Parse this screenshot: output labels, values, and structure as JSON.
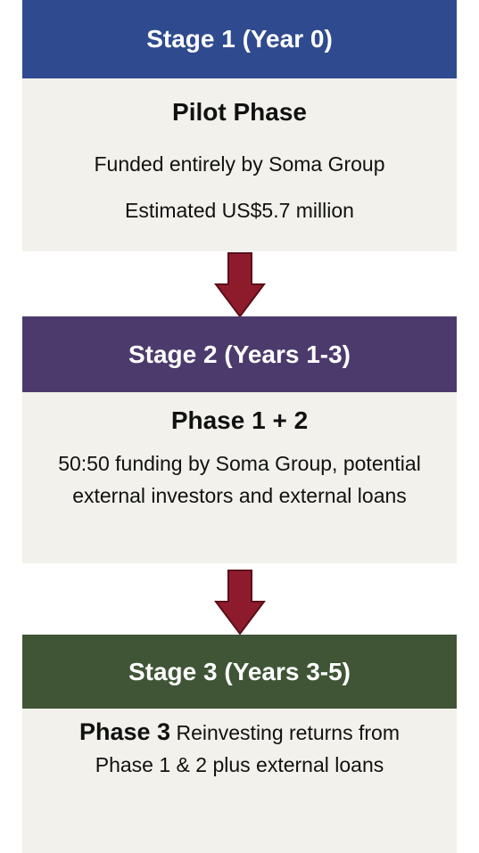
{
  "stages": [
    {
      "title": "Stage 1 (Year 0)",
      "phase": "Pilot Phase",
      "lines": [
        "Funded entirely by Soma Group",
        "Estimated US$5.7 million"
      ]
    },
    {
      "title": "Stage 2 (Years 1-3)",
      "phase": "Phase 1 + 2",
      "lines": [
        "50:50 funding by Soma Group, potential external investors and external loans"
      ]
    },
    {
      "title": "Stage 3 (Years 3-5)",
      "phase": "Phase 3",
      "lines": [
        "Reinvesting returns from Phase 1 & 2 plus external loans"
      ]
    }
  ]
}
